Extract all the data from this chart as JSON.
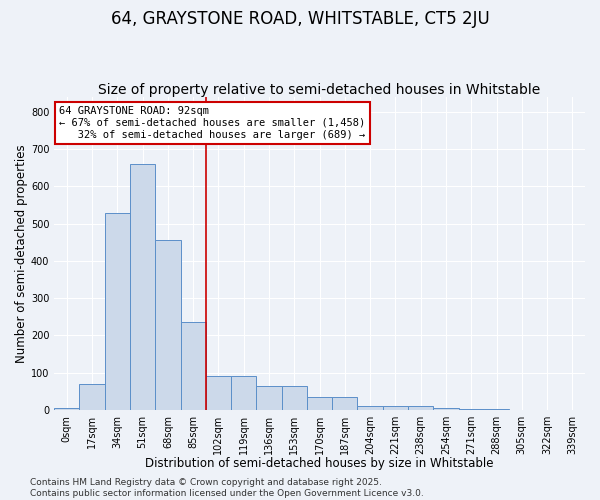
{
  "title": "64, GRAYSTONE ROAD, WHITSTABLE, CT5 2JU",
  "subtitle": "Size of property relative to semi-detached houses in Whitstable",
  "xlabel": "Distribution of semi-detached houses by size in Whitstable",
  "ylabel": "Number of semi-detached properties",
  "bar_values": [
    5,
    70,
    530,
    660,
    455,
    235,
    90,
    90,
    65,
    65,
    35,
    35,
    10,
    10,
    10,
    5,
    3,
    2,
    1,
    1,
    0
  ],
  "bar_labels": [
    "0sqm",
    "17sqm",
    "34sqm",
    "51sqm",
    "68sqm",
    "85sqm",
    "102sqm",
    "119sqm",
    "136sqm",
    "153sqm",
    "170sqm",
    "187sqm",
    "204sqm",
    "221sqm",
    "238sqm",
    "254sqm",
    "271sqm",
    "288sqm",
    "305sqm",
    "322sqm",
    "339sqm"
  ],
  "bar_color": "#ccd9ea",
  "bar_edge_color": "#5b8fc9",
  "bar_edge_width": 0.7,
  "vline_x": 5.5,
  "vline_color": "#cc0000",
  "annotation_text": "64 GRAYSTONE ROAD: 92sqm\n← 67% of semi-detached houses are smaller (1,458)\n   32% of semi-detached houses are larger (689) →",
  "annotation_box_color": "#ffffff",
  "annotation_box_edge_color": "#cc0000",
  "ylim": [
    0,
    840
  ],
  "yticks": [
    0,
    100,
    200,
    300,
    400,
    500,
    600,
    700,
    800
  ],
  "background_color": "#eef2f8",
  "axes_background_color": "#eef2f8",
  "footer_text": "Contains HM Land Registry data © Crown copyright and database right 2025.\nContains public sector information licensed under the Open Government Licence v3.0.",
  "title_fontsize": 12,
  "subtitle_fontsize": 10,
  "label_fontsize": 8.5,
  "tick_fontsize": 7,
  "footer_fontsize": 6.5,
  "annotation_fontsize": 7.5
}
